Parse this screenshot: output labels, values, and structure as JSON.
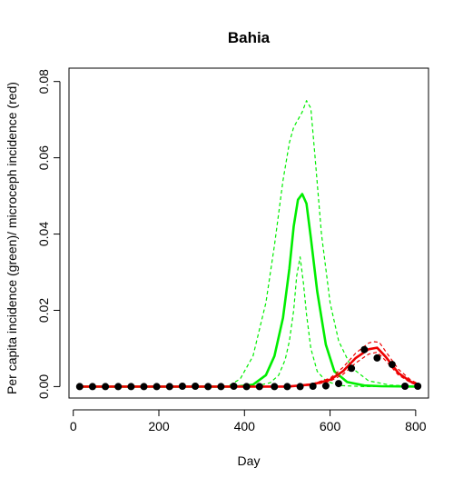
{
  "chart_data": {
    "type": "line",
    "title": "Bahia",
    "xlabel": "Day",
    "ylabel": "Per capita incidence (green)/ microceph incidence (red)",
    "xlim": [
      -10,
      830
    ],
    "ylim": [
      -0.003,
      0.0835
    ],
    "xticks": [
      0,
      200,
      400,
      600,
      800
    ],
    "yticks": [
      0.0,
      0.02,
      0.04,
      0.06,
      0.08
    ],
    "xtick_labels": [
      "0",
      "200",
      "400",
      "600",
      "800"
    ],
    "ytick_labels": [
      "0.00",
      "0.02",
      "0.04",
      "0.06",
      "0.08"
    ],
    "colors": {
      "incidence": "#00ee00",
      "microcephaly": "#ee0000",
      "observed": "#000000"
    },
    "series": [
      {
        "role": "incidence-median",
        "style": "solid",
        "x": [
          10,
          380,
          420,
          450,
          470,
          490,
          505,
          515,
          525,
          535,
          545,
          555,
          570,
          590,
          610,
          640,
          680,
          720,
          810
        ],
        "y": [
          0.0,
          0.0,
          0.0005,
          0.003,
          0.008,
          0.018,
          0.031,
          0.042,
          0.049,
          0.0505,
          0.048,
          0.039,
          0.025,
          0.011,
          0.004,
          0.0012,
          0.0003,
          0.0001,
          0.0
        ]
      },
      {
        "role": "incidence-upper",
        "style": "dashed",
        "x": [
          10,
          360,
          390,
          420,
          450,
          470,
          490,
          505,
          515,
          525,
          535,
          545,
          555,
          565,
          580,
          600,
          620,
          650,
          690,
          740,
          810
        ],
        "y": [
          0.0,
          0.0,
          0.002,
          0.008,
          0.022,
          0.037,
          0.054,
          0.064,
          0.068,
          0.07,
          0.072,
          0.075,
          0.073,
          0.06,
          0.04,
          0.022,
          0.012,
          0.005,
          0.0015,
          0.0004,
          0.0
        ]
      },
      {
        "role": "incidence-lower",
        "style": "dashed",
        "x": [
          10,
          420,
          460,
          480,
          495,
          505,
          515,
          522,
          530,
          538,
          545,
          555,
          570,
          590,
          620,
          680,
          810
        ],
        "y": [
          0.0,
          0.0,
          0.001,
          0.003,
          0.007,
          0.012,
          0.02,
          0.029,
          0.034,
          0.027,
          0.019,
          0.01,
          0.004,
          0.0015,
          0.0003,
          0.0,
          0.0
        ]
      },
      {
        "role": "microcephaly-median",
        "style": "solid",
        "x": [
          10,
          500,
          560,
          600,
          630,
          660,
          690,
          710,
          730,
          760,
          790,
          810
        ],
        "y": [
          0.0,
          0.0,
          0.0006,
          0.0018,
          0.004,
          0.0075,
          0.0098,
          0.0102,
          0.0078,
          0.0035,
          0.0012,
          0.0004
        ]
      },
      {
        "role": "microcephaly-upper",
        "style": "dashed",
        "x": [
          10,
          500,
          560,
          600,
          630,
          660,
          690,
          700,
          715,
          730,
          760,
          790,
          810
        ],
        "y": [
          0.0,
          0.0,
          0.0008,
          0.0022,
          0.005,
          0.0088,
          0.0114,
          0.0118,
          0.0116,
          0.0092,
          0.0045,
          0.0016,
          0.0006
        ]
      },
      {
        "role": "microcephaly-lower",
        "style": "dashed",
        "x": [
          10,
          500,
          560,
          600,
          630,
          660,
          690,
          710,
          730,
          760,
          790,
          810
        ],
        "y": [
          0.0,
          0.0,
          0.0004,
          0.0014,
          0.0032,
          0.0062,
          0.0085,
          0.009,
          0.0068,
          0.003,
          0.0009,
          0.0002
        ]
      }
    ],
    "observed": {
      "x": [
        15,
        45,
        75,
        105,
        135,
        165,
        195,
        225,
        255,
        285,
        315,
        345,
        375,
        405,
        435,
        470,
        500,
        530,
        560,
        590,
        620,
        650,
        680,
        710,
        745,
        775,
        805
      ],
      "y": [
        0,
        0,
        0,
        0,
        0,
        0,
        0,
        0,
        0.0001,
        0.0001,
        0,
        0,
        0.0001,
        0,
        0,
        0,
        0,
        0,
        0.0001,
        0.0002,
        0.0008,
        0.0048,
        0.0097,
        0.0075,
        0.0058,
        0.0001,
        0.0001
      ]
    }
  }
}
